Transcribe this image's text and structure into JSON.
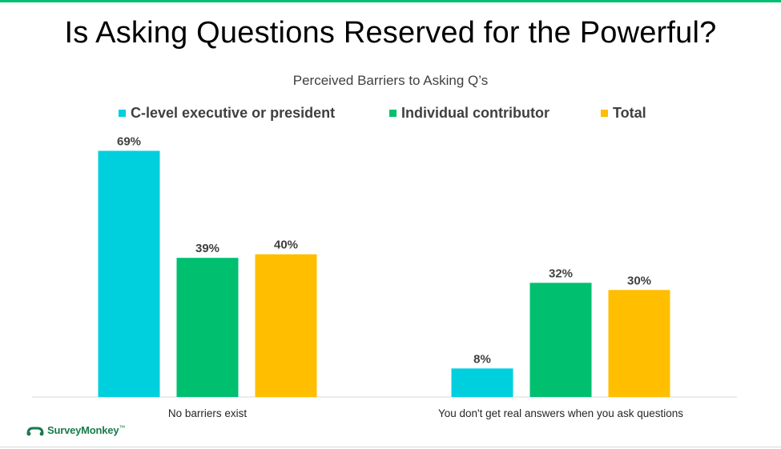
{
  "chart_data": {
    "type": "bar",
    "title": "Is Asking Questions Reserved for the Powerful?",
    "subtitle": "Perceived Barriers to Asking Q’s",
    "categories": [
      "No barriers exist",
      "You don't get real answers when you ask questions"
    ],
    "series": [
      {
        "name": "C-level executive or president",
        "values": [
          69,
          8
        ],
        "color": "#00cfde"
      },
      {
        "name": "Individual contributor",
        "values": [
          39,
          32
        ],
        "color": "#00bf6f"
      },
      {
        "name": "Total",
        "values": [
          40,
          30
        ],
        "color": "#ffbe00"
      }
    ],
    "data_labels": [
      [
        "69%",
        "8%"
      ],
      [
        "39%",
        "32%"
      ],
      [
        "40%",
        "30%"
      ]
    ],
    "ylim": [
      0,
      70
    ],
    "grid": false,
    "legend_position": "top"
  },
  "branding": {
    "logo_text": "SurveyMonkey",
    "logo_mark": "™",
    "accent_color": "#00bf6f"
  }
}
